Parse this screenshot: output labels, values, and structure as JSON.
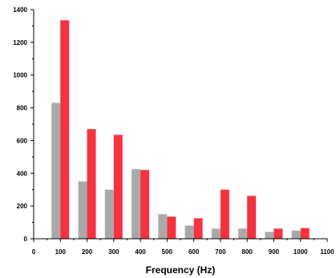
{
  "chart_data": {
    "type": "bar",
    "title": "",
    "xlabel": "Frequency (Hz)",
    "ylabel": "",
    "xlim": [
      0,
      1100
    ],
    "ylim": [
      0,
      1400
    ],
    "xticks": [
      0,
      100,
      200,
      300,
      400,
      500,
      600,
      700,
      800,
      900,
      1000,
      1100
    ],
    "yticks": [
      0,
      200,
      400,
      600,
      800,
      1000,
      1200,
      1400
    ],
    "x": [
      100,
      200,
      300,
      400,
      500,
      600,
      700,
      800,
      900,
      1000
    ],
    "grid": false,
    "legend": "none",
    "series": [
      {
        "color": "#a9a9a9",
        "values": [
          830,
          350,
          300,
          425,
          150,
          80,
          62,
          62,
          42,
          50
        ]
      },
      {
        "color": "#f5333f",
        "values": [
          1335,
          670,
          635,
          420,
          135,
          125,
          300,
          262,
          62,
          65
        ]
      }
    ]
  }
}
